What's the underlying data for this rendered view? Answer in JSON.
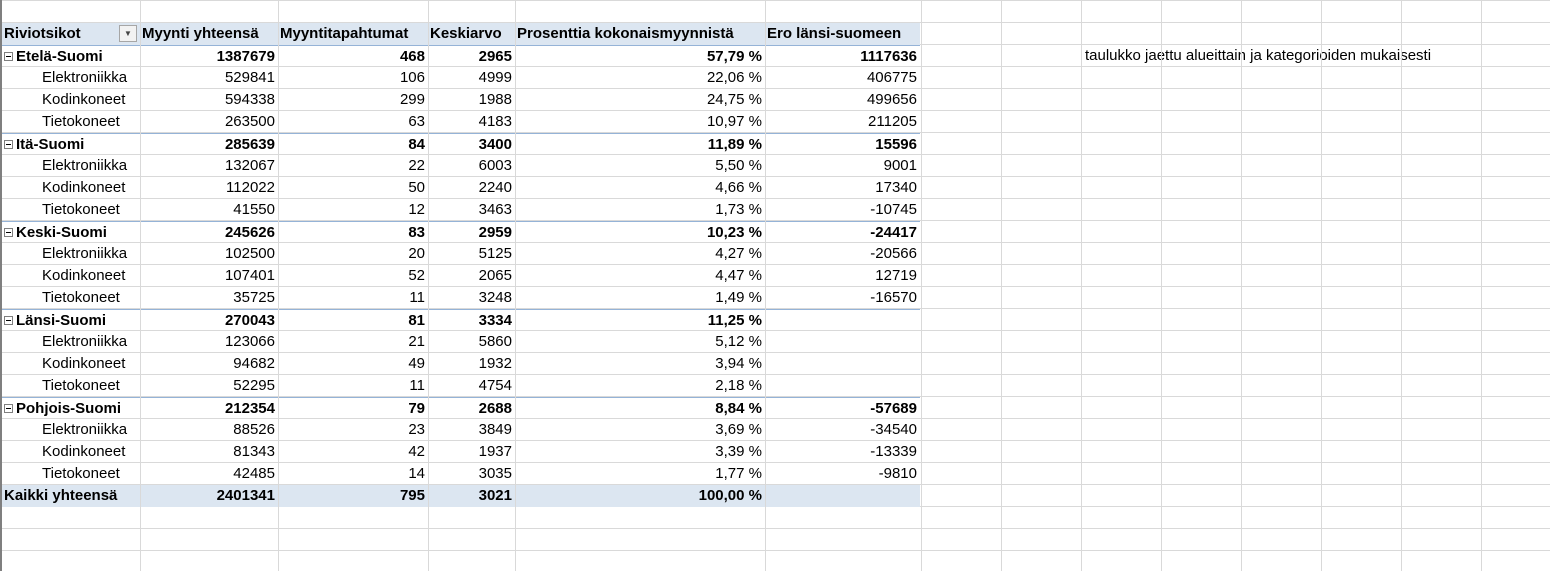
{
  "pivot": {
    "headers": [
      "Riviotsikot",
      "Myynti yhteensä",
      "Myyntitapahtumat",
      "Keskiarvo",
      "Prosenttia kokonaismyynnistä",
      "Ero länsi-suomeen"
    ],
    "dropdown_icon": "filter-dropdown-icon",
    "regions": [
      {
        "name": "Etelä-Suomi",
        "sales": "1387679",
        "count": "468",
        "avg": "2965",
        "pct": "57,79 %",
        "diff": "1117636",
        "items": [
          {
            "name": "Elektroniikka",
            "sales": "529841",
            "count": "106",
            "avg": "4999",
            "pct": "22,06 %",
            "diff": "406775"
          },
          {
            "name": "Kodinkoneet",
            "sales": "594338",
            "count": "299",
            "avg": "1988",
            "pct": "24,75 %",
            "diff": "499656"
          },
          {
            "name": "Tietokoneet",
            "sales": "263500",
            "count": "63",
            "avg": "4183",
            "pct": "10,97 %",
            "diff": "211205"
          }
        ]
      },
      {
        "name": "Itä-Suomi",
        "sales": "285639",
        "count": "84",
        "avg": "3400",
        "pct": "11,89 %",
        "diff": "15596",
        "items": [
          {
            "name": "Elektroniikka",
            "sales": "132067",
            "count": "22",
            "avg": "6003",
            "pct": "5,50 %",
            "diff": "9001"
          },
          {
            "name": "Kodinkoneet",
            "sales": "112022",
            "count": "50",
            "avg": "2240",
            "pct": "4,66 %",
            "diff": "17340"
          },
          {
            "name": "Tietokoneet",
            "sales": "41550",
            "count": "12",
            "avg": "3463",
            "pct": "1,73 %",
            "diff": "-10745"
          }
        ]
      },
      {
        "name": "Keski-Suomi",
        "sales": "245626",
        "count": "83",
        "avg": "2959",
        "pct": "10,23 %",
        "diff": "-24417",
        "items": [
          {
            "name": "Elektroniikka",
            "sales": "102500",
            "count": "20",
            "avg": "5125",
            "pct": "4,27 %",
            "diff": "-20566"
          },
          {
            "name": "Kodinkoneet",
            "sales": "107401",
            "count": "52",
            "avg": "2065",
            "pct": "4,47 %",
            "diff": "12719"
          },
          {
            "name": "Tietokoneet",
            "sales": "35725",
            "count": "11",
            "avg": "3248",
            "pct": "1,49 %",
            "diff": "-16570"
          }
        ]
      },
      {
        "name": "Länsi-Suomi",
        "sales": "270043",
        "count": "81",
        "avg": "3334",
        "pct": "11,25 %",
        "diff": "",
        "items": [
          {
            "name": "Elektroniikka",
            "sales": "123066",
            "count": "21",
            "avg": "5860",
            "pct": "5,12 %",
            "diff": ""
          },
          {
            "name": "Kodinkoneet",
            "sales": "94682",
            "count": "49",
            "avg": "1932",
            "pct": "3,94 %",
            "diff": ""
          },
          {
            "name": "Tietokoneet",
            "sales": "52295",
            "count": "11",
            "avg": "4754",
            "pct": "2,18 %",
            "diff": ""
          }
        ]
      },
      {
        "name": "Pohjois-Suomi",
        "sales": "212354",
        "count": "79",
        "avg": "2688",
        "pct": "8,84 %",
        "diff": "-57689",
        "items": [
          {
            "name": "Elektroniikka",
            "sales": "88526",
            "count": "23",
            "avg": "3849",
            "pct": "3,69 %",
            "diff": "-34540"
          },
          {
            "name": "Kodinkoneet",
            "sales": "81343",
            "count": "42",
            "avg": "1937",
            "pct": "3,39 %",
            "diff": "-13339"
          },
          {
            "name": "Tietokoneet",
            "sales": "42485",
            "count": "14",
            "avg": "3035",
            "pct": "1,77 %",
            "diff": "-9810"
          }
        ]
      }
    ],
    "grand_total": {
      "name": "Kaikki yhteensä",
      "sales": "2401341",
      "count": "795",
      "avg": "3021",
      "pct": "100,00 %",
      "diff": ""
    }
  },
  "note": "taulukko jaettu alueittain ja kategorioiden mukaisesti",
  "colors": {
    "header_fill": "#dce6f1",
    "region_border": "#95b3d7",
    "gridline": "#d9d9d9"
  }
}
